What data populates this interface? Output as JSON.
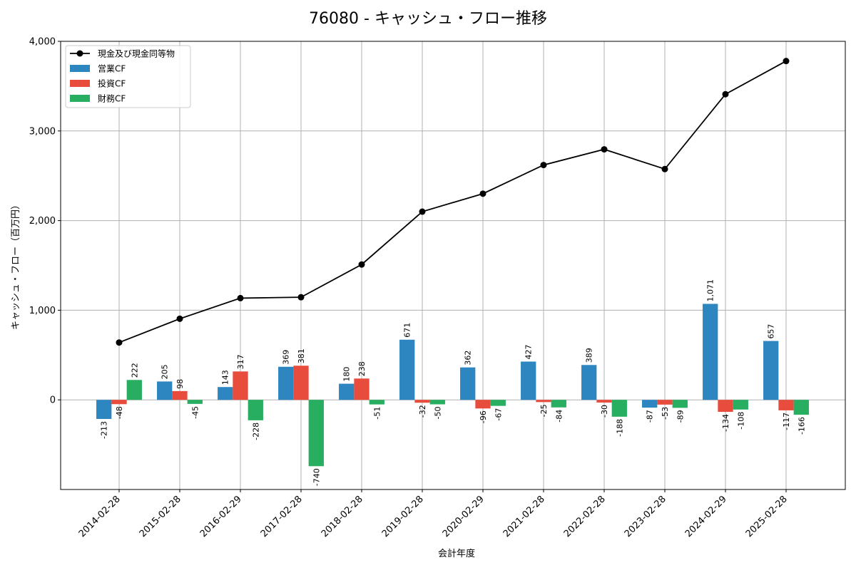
{
  "chart_data": {
    "type": "bar",
    "title": "76080 - キャッシュ・フロー推移",
    "xlabel": "会計年度",
    "ylabel": "キャッシュ・フロー（百万円）",
    "ylim": [
      -1000,
      4000
    ],
    "yticks": [
      0,
      1000,
      2000,
      3000,
      4000
    ],
    "ytick_labels": [
      "0",
      "1,000",
      "2,000",
      "3,000",
      "4,000"
    ],
    "grid": true,
    "legend_position": "top-left",
    "categories": [
      "2014-02-28",
      "2015-02-28",
      "2016-02-29",
      "2017-02-28",
      "2018-02-28",
      "2019-02-28",
      "2020-02-29",
      "2021-02-28",
      "2022-02-28",
      "2023-02-28",
      "2024-02-29",
      "2025-02-28"
    ],
    "series": [
      {
        "name": "営業CF",
        "type": "bar",
        "color": "#2e86c1",
        "values": [
          -213,
          205,
          143,
          369,
          180,
          671,
          362,
          427,
          389,
          -87,
          1071,
          657
        ],
        "labels": [
          "-213",
          "205",
          "143",
          "369",
          "180",
          "671",
          "362",
          "427",
          "389",
          "-87",
          "1,071",
          "657"
        ]
      },
      {
        "name": "投資CF",
        "type": "bar",
        "color": "#e74c3c",
        "values": [
          -48,
          98,
          317,
          381,
          238,
          -32,
          -96,
          -25,
          -30,
          -53,
          -134,
          -117
        ],
        "labels": [
          "-48",
          "98",
          "317",
          "381",
          "238",
          "-32",
          "-96",
          "-25",
          "-30",
          "-53",
          "-134",
          "-117"
        ]
      },
      {
        "name": "財務CF",
        "type": "bar",
        "color": "#27ae60",
        "values": [
          222,
          -45,
          -228,
          -740,
          -51,
          -50,
          -67,
          -84,
          -188,
          -89,
          -108,
          -166
        ],
        "labels": [
          "222",
          "-45",
          "-228",
          "-740",
          "-51",
          "-50",
          "-67",
          "-84",
          "-188",
          "-89",
          "-108",
          "-166"
        ]
      },
      {
        "name": "現金及び現金同等物",
        "type": "line",
        "color": "#000000",
        "values": [
          640,
          905,
          1135,
          1145,
          1510,
          2100,
          2300,
          2620,
          2795,
          2575,
          3410,
          3780
        ]
      }
    ]
  }
}
